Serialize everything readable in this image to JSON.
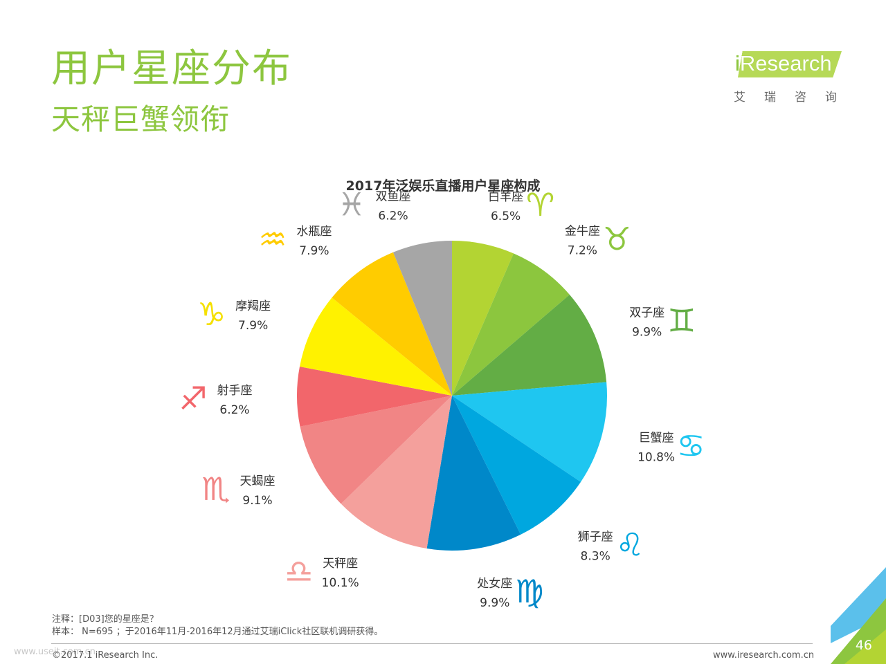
{
  "page": {
    "title": "用户星座分布",
    "subtitle": "天秤巨蟹领衔",
    "page_number": "46"
  },
  "brand": {
    "logo_text": "Research",
    "logo_i": "i",
    "logo_cn": "艾瑞咨询",
    "green": "#8dc63f"
  },
  "notes": {
    "note1": "注释：[D03]您的星座是？",
    "note2": "样本： N=695 ；于2016年11月-2016年12月通过艾瑞iClick社区联机调研获得。",
    "copyright": "©2017.1 iResearch Inc.",
    "website": "www.iresearch.com.cn",
    "watermark": "www.useit.com.cn"
  },
  "chart_data": {
    "type": "pie",
    "title": "2017年泛娱乐直播用户星座构成",
    "start": "12 o'clock, clockwise",
    "slices": [
      {
        "label": "白羊座",
        "value": 6.5,
        "display": "6.5%",
        "color": "#b3d433",
        "symbol": "♈",
        "icon": "aries-icon"
      },
      {
        "label": "金牛座",
        "value": 7.2,
        "display": "7.2%",
        "color": "#8cc63e",
        "symbol": "♉",
        "icon": "taurus-icon"
      },
      {
        "label": "双子座",
        "value": 9.9,
        "display": "9.9%",
        "color": "#63ad45",
        "symbol": "♊",
        "icon": "gemini-icon"
      },
      {
        "label": "巨蟹座",
        "value": 10.8,
        "display": "10.8%",
        "color": "#1fc6f0",
        "symbol": "♋",
        "icon": "cancer-icon"
      },
      {
        "label": "狮子座",
        "value": 8.3,
        "display": "8.3%",
        "color": "#00a7df",
        "symbol": "♌",
        "icon": "leo-icon"
      },
      {
        "label": "处女座",
        "value": 9.9,
        "display": "9.9%",
        "color": "#0088c9",
        "symbol": "♍",
        "icon": "virgo-icon"
      },
      {
        "label": "天秤座",
        "value": 10.1,
        "display": "10.1%",
        "color": "#f4a09c",
        "symbol": "♎",
        "icon": "libra-icon"
      },
      {
        "label": "天蝎座",
        "value": 9.1,
        "display": "9.1%",
        "color": "#f18585",
        "symbol": "♏",
        "icon": "scorpio-icon"
      },
      {
        "label": "射手座",
        "value": 6.2,
        "display": "6.2%",
        "color": "#f2666b",
        "symbol": "♐",
        "icon": "sagittarius-icon"
      },
      {
        "label": "摩羯座",
        "value": 7.9,
        "display": "7.9%",
        "color": "#fff200",
        "symbol": "♑",
        "icon": "capricorn-icon"
      },
      {
        "label": "水瓶座",
        "value": 7.9,
        "display": "7.9%",
        "color": "#ffcc00",
        "symbol": "♒",
        "icon": "aquarius-icon"
      },
      {
        "label": "双鱼座",
        "value": 6.2,
        "display": "6.2%",
        "color": "#a6a6a6",
        "symbol": "♓",
        "icon": "pisces-icon"
      }
    ]
  }
}
